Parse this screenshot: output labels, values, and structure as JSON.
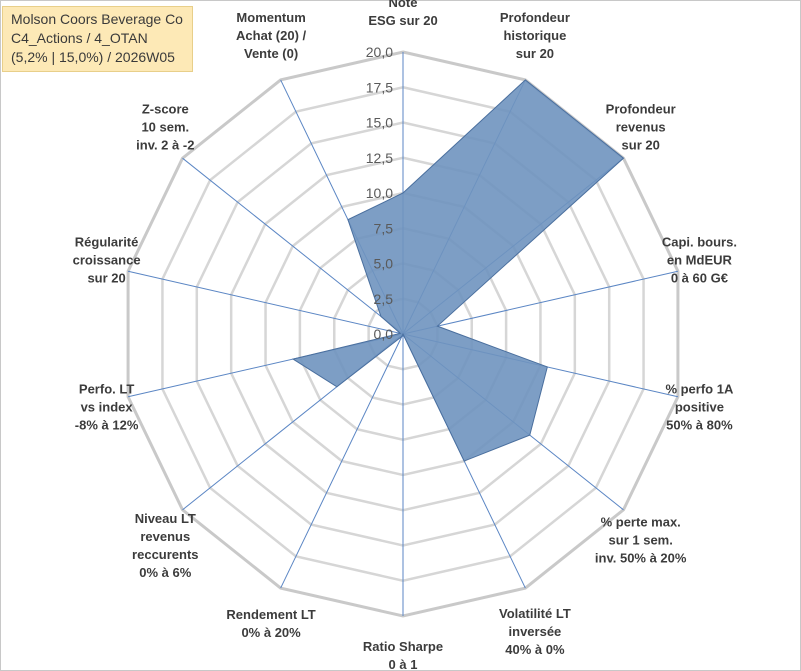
{
  "title_box": {
    "line1": "Molson Coors Beverage Co",
    "line2": "C4_Actions / 4_OTAN",
    "line3": "(5,2% | 15,0%) / 2026W05"
  },
  "chart_data": {
    "type": "radar",
    "title": "Molson Coors Beverage Co C4_Actions / 4_OTAN (5,2% | 15,0%) / 2026W05",
    "rmin": 0,
    "rmax": 20,
    "grid_step": 2.5,
    "grid": true,
    "tick_labels": [
      "0,0",
      "2,5",
      "5,0",
      "7,5",
      "10,0",
      "12,5",
      "15,0",
      "17,5",
      "20,0"
    ],
    "axes": [
      [
        "Note",
        "ESG sur 20"
      ],
      [
        "Profondeur",
        "historique",
        "sur 20"
      ],
      [
        "Profondeur",
        "revenus",
        "sur 20"
      ],
      [
        "Capi. bours.",
        "en MdEUR",
        "0 à 60 G€"
      ],
      [
        "% perfo 1A",
        "positive",
        "50% à 80%"
      ],
      [
        "% perte max.",
        "sur 1 sem.",
        "inv. 50% à 20%"
      ],
      [
        "Volatilité LT",
        "inversée",
        "40% à 0%"
      ],
      [
        "Ratio Sharpe",
        "0 à 1"
      ],
      [
        "Rendement LT",
        "0% à 20%"
      ],
      [
        "Niveau LT",
        "revenus",
        "reccurents",
        "0% à 6%"
      ],
      [
        "Perfo. LT",
        "vs index",
        "-8% à 12%"
      ],
      [
        "Régularité",
        "croissance",
        "sur 20"
      ],
      [
        "Z-score",
        "10 sem.",
        "inv. 2 à -2"
      ],
      [
        "Momentum",
        "Achat (20) /",
        "Vente (0)"
      ]
    ],
    "series": [
      {
        "name": "Molson Coors Beverage Co",
        "color": "#6f93bf",
        "edge": "#4a6f9e",
        "values": [
          10.0,
          20.0,
          20.0,
          2.5,
          10.5,
          11.5,
          10.0,
          0.0,
          0.2,
          6.0,
          8.0,
          0.2,
          2.0,
          9.0
        ]
      }
    ]
  }
}
